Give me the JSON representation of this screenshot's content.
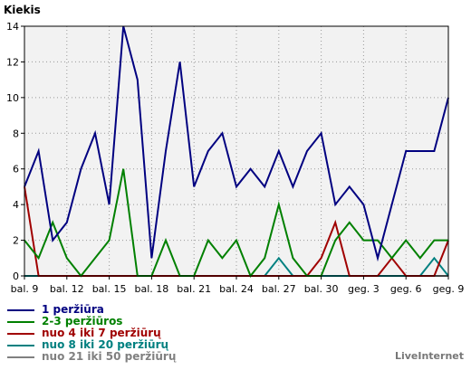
{
  "chart_data": {
    "type": "line",
    "title": "",
    "ylabel": "Kiekis",
    "xlabel": "",
    "ylim": [
      0,
      14
    ],
    "yticks": [
      0,
      2,
      4,
      6,
      8,
      10,
      12,
      14
    ],
    "grid": true,
    "legend_position": "bottom-left",
    "x_ticks": [
      {
        "index": 0,
        "label": "bal. 9"
      },
      {
        "index": 3,
        "label": "bal. 12"
      },
      {
        "index": 6,
        "label": "bal. 15"
      },
      {
        "index": 9,
        "label": "bal. 18"
      },
      {
        "index": 12,
        "label": "bal. 21"
      },
      {
        "index": 15,
        "label": "bal. 24"
      },
      {
        "index": 18,
        "label": "bal. 27"
      },
      {
        "index": 21,
        "label": "bal. 30"
      },
      {
        "index": 24,
        "label": "geg. 3"
      },
      {
        "index": 27,
        "label": "geg. 6"
      },
      {
        "index": 30,
        "label": "geg. 9"
      }
    ],
    "series": [
      {
        "name": "1 peržiūra",
        "color": "#000080",
        "values": [
          5,
          7,
          2,
          3,
          6,
          8,
          4,
          14,
          11,
          1,
          7,
          12,
          5,
          7,
          8,
          5,
          6,
          5,
          7,
          5,
          7,
          8,
          4,
          5,
          4,
          1,
          4,
          7,
          7,
          7,
          10
        ]
      },
      {
        "name": "2-3 peržiūros",
        "color": "#008000",
        "values": [
          2,
          1,
          3,
          1,
          0,
          1,
          2,
          6,
          0,
          0,
          2,
          0,
          0,
          2,
          1,
          2,
          0,
          1,
          4,
          1,
          0,
          0,
          2,
          3,
          2,
          2,
          1,
          2,
          1,
          2,
          2
        ]
      },
      {
        "name": "nuo 4 iki 7 peržiūrų",
        "color": "#a00000",
        "values": [
          5,
          0,
          0,
          0,
          0,
          0,
          0,
          0,
          0,
          0,
          0,
          0,
          0,
          0,
          0,
          0,
          0,
          0,
          0,
          0,
          0,
          1,
          3,
          0,
          0,
          0,
          1,
          0,
          0,
          0,
          2
        ]
      },
      {
        "name": "nuo 8 iki 20 peržiūrų",
        "color": "#008080",
        "values": [
          0,
          0,
          0,
          0,
          0,
          0,
          0,
          0,
          0,
          0,
          0,
          0,
          0,
          0,
          0,
          0,
          0,
          0,
          1,
          0,
          0,
          0,
          0,
          0,
          0,
          0,
          0,
          0,
          0,
          1,
          0
        ]
      },
      {
        "name": "nuo 21 iki 50 peržiūrų",
        "color": "#808080",
        "values": [
          0,
          0,
          0,
          0,
          0,
          0,
          0,
          0,
          0,
          0,
          0,
          0,
          0,
          0,
          0,
          0,
          0,
          0,
          0,
          0,
          0,
          0,
          0,
          0,
          0,
          0,
          0,
          0,
          0,
          0,
          0
        ]
      }
    ]
  },
  "brand": "LiveInternet"
}
